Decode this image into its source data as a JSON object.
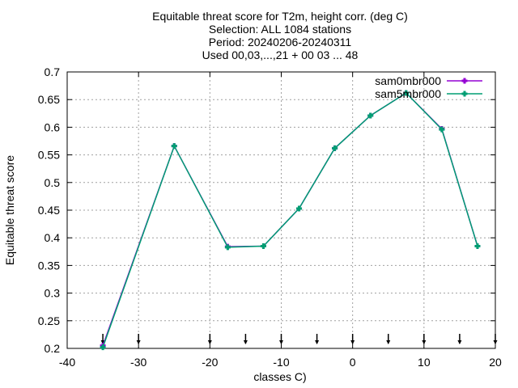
{
  "chart_data": {
    "type": "line",
    "title_lines": [
      "Equitable threat score  for T2m, height corr. (deg C)",
      "Selection: ALL   1084 stations",
      "Period: 20240206-20240311",
      "Used 00,03,...,21 + 00 03 ... 48"
    ],
    "xlabel": "classes C)",
    "ylabel": "Equitable threat score",
    "xlim": [
      -40,
      20
    ],
    "ylim": [
      0.2,
      0.7
    ],
    "xticks": [
      -40,
      -30,
      -20,
      -10,
      0,
      10,
      20
    ],
    "yticks": [
      0.2,
      0.25,
      0.3,
      0.35,
      0.4,
      0.45,
      0.5,
      0.55,
      0.6,
      0.65,
      0.7
    ],
    "xtick_labels": [
      "-40",
      "-30",
      "-20",
      "-10",
      "0",
      "10",
      "20"
    ],
    "ytick_labels": [
      "0.2",
      "0.25",
      "0.3",
      "0.35",
      "0.4",
      "0.45",
      "0.5",
      "0.55",
      "0.6",
      "0.65",
      "0.7"
    ],
    "grid": true,
    "legend_position": "top-right",
    "class_boundaries": [
      -35,
      -30,
      -20,
      -15,
      -10,
      -5,
      0,
      5,
      10,
      15,
      20
    ],
    "series": [
      {
        "name": "sam0mbr000",
        "color": "#9400d3",
        "x": [
          -35,
          -25,
          -17.5,
          -12.5,
          -7.5,
          -2.5,
          2.5,
          7.5,
          12.5,
          17.5
        ],
        "y": [
          0.205,
          0.566,
          0.384,
          0.385,
          0.453,
          0.562,
          0.621,
          0.662,
          0.597,
          0.385
        ]
      },
      {
        "name": "sam5mbr000",
        "color": "#009e73",
        "x": [
          -35,
          -25,
          -17.5,
          -12.5,
          -7.5,
          -2.5,
          2.5,
          7.5,
          12.5,
          17.5
        ],
        "y": [
          0.202,
          0.566,
          0.383,
          0.385,
          0.453,
          0.562,
          0.621,
          0.662,
          0.596,
          0.385
        ]
      }
    ]
  }
}
